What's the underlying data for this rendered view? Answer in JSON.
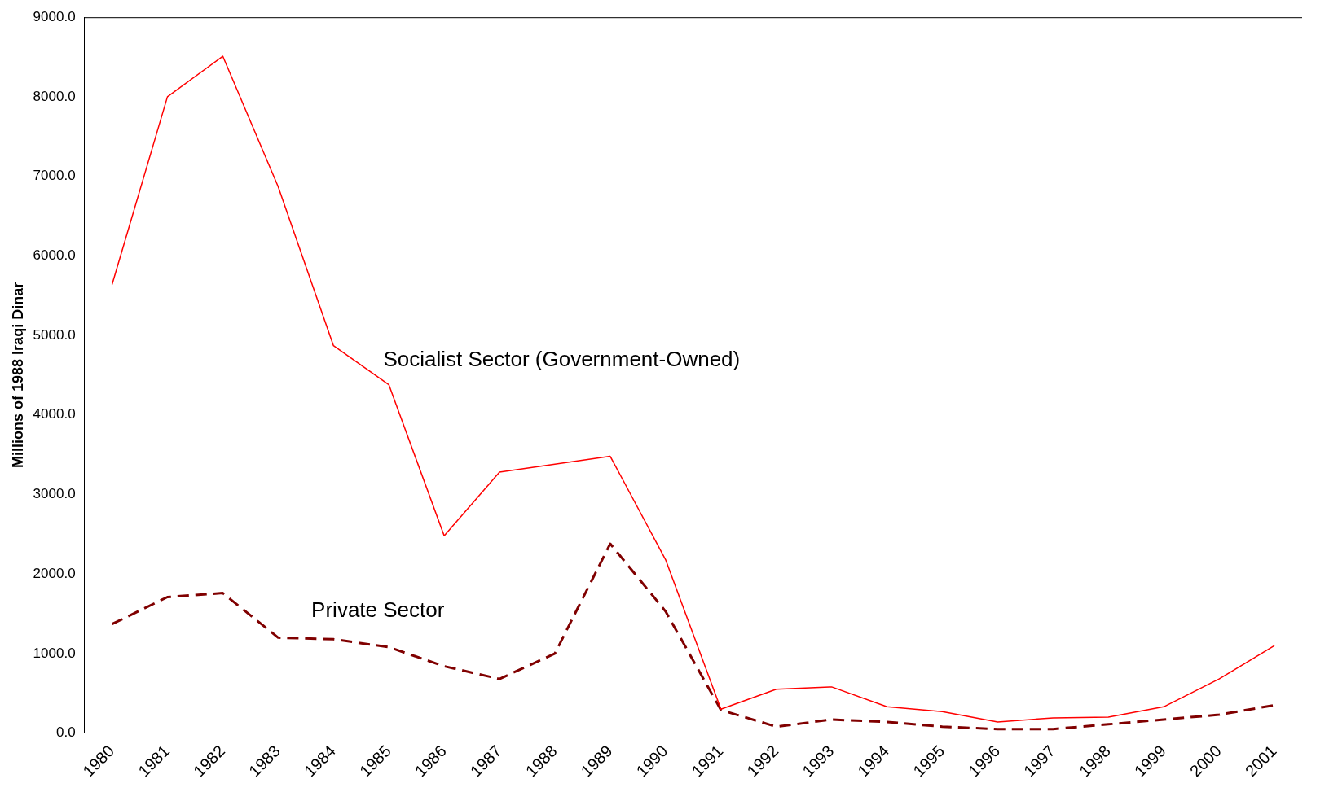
{
  "chart_data": {
    "type": "line",
    "ylabel": "Millions of 1988 Iraqi Dinar",
    "categories": [
      "1980",
      "1981",
      "1982",
      "1983",
      "1984",
      "1985",
      "1986",
      "1987",
      "1988",
      "1989",
      "1990",
      "1991",
      "1992",
      "1993",
      "1994",
      "1995",
      "1996",
      "1997",
      "1998",
      "1999",
      "2000",
      "2001"
    ],
    "series": [
      {
        "name": "Socialist Sector (Government-Owned)",
        "color": "#ff0000",
        "line_style": "solid",
        "values": [
          5640,
          8000,
          8510,
          6870,
          4870,
          4380,
          2480,
          3280,
          3380,
          3480,
          2180,
          300,
          550,
          580,
          330,
          270,
          140,
          190,
          200,
          330,
          680,
          1100
        ]
      },
      {
        "name": "Private Sector",
        "color": "#800000",
        "line_style": "dashed",
        "values": [
          1370,
          1710,
          1760,
          1200,
          1180,
          1080,
          840,
          680,
          1000,
          2380,
          1530,
          290,
          80,
          170,
          140,
          80,
          50,
          50,
          110,
          170,
          230,
          350
        ]
      }
    ],
    "ylim": [
      0,
      9000
    ],
    "yticks": [
      {
        "value": 0,
        "label": "0.0"
      },
      {
        "value": 1000,
        "label": "1000.0"
      },
      {
        "value": 2000,
        "label": "2000.0"
      },
      {
        "value": 3000,
        "label": "3000.0"
      },
      {
        "value": 4000,
        "label": "4000.0"
      },
      {
        "value": 5000,
        "label": "5000.0"
      },
      {
        "value": 6000,
        "label": "6000.0"
      },
      {
        "value": 7000,
        "label": "7000.0"
      },
      {
        "value": 8000,
        "label": "8000.0"
      },
      {
        "value": 9000,
        "label": "9000.0"
      }
    ],
    "grid": false,
    "legend": false,
    "marker": "none"
  }
}
